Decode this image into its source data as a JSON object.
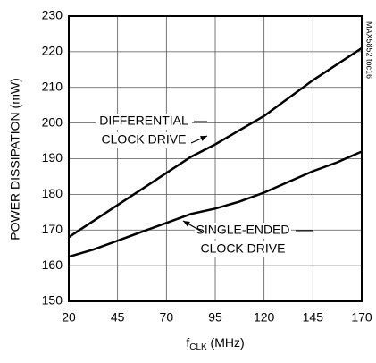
{
  "chart_data": {
    "type": "line",
    "ylabel": "POWER DISSIPATION (mW)",
    "xlabel": [
      "f",
      "CLK",
      " (MHz)"
    ],
    "side_note": "MAX5852 toc16",
    "x": [
      20,
      32.5,
      45,
      57.5,
      70,
      82.5,
      95,
      107.5,
      120,
      132.5,
      145,
      157.5,
      170
    ],
    "series": [
      {
        "name": [
          "DIFFERENTIAL",
          "CLOCK DRIVE"
        ],
        "color": "#000000",
        "values": [
          168,
          172.5,
          177,
          181.5,
          186,
          190.5,
          194,
          198,
          202,
          207,
          212,
          216.5,
          221
        ]
      },
      {
        "name": [
          "SINGLE-ENDED",
          "CLOCK DRIVE"
        ],
        "color": "#000000",
        "values": [
          162.5,
          164.5,
          167,
          169.5,
          172,
          174.5,
          176,
          178,
          180.5,
          183.5,
          186.5,
          189,
          192
        ]
      }
    ],
    "xlim": [
      20,
      170
    ],
    "xticks": [
      20,
      45,
      70,
      95,
      120,
      145,
      170
    ],
    "ylim": [
      150,
      230
    ],
    "yticks": [
      150,
      160,
      170,
      180,
      190,
      200,
      210,
      220,
      230
    ],
    "grid": true
  }
}
